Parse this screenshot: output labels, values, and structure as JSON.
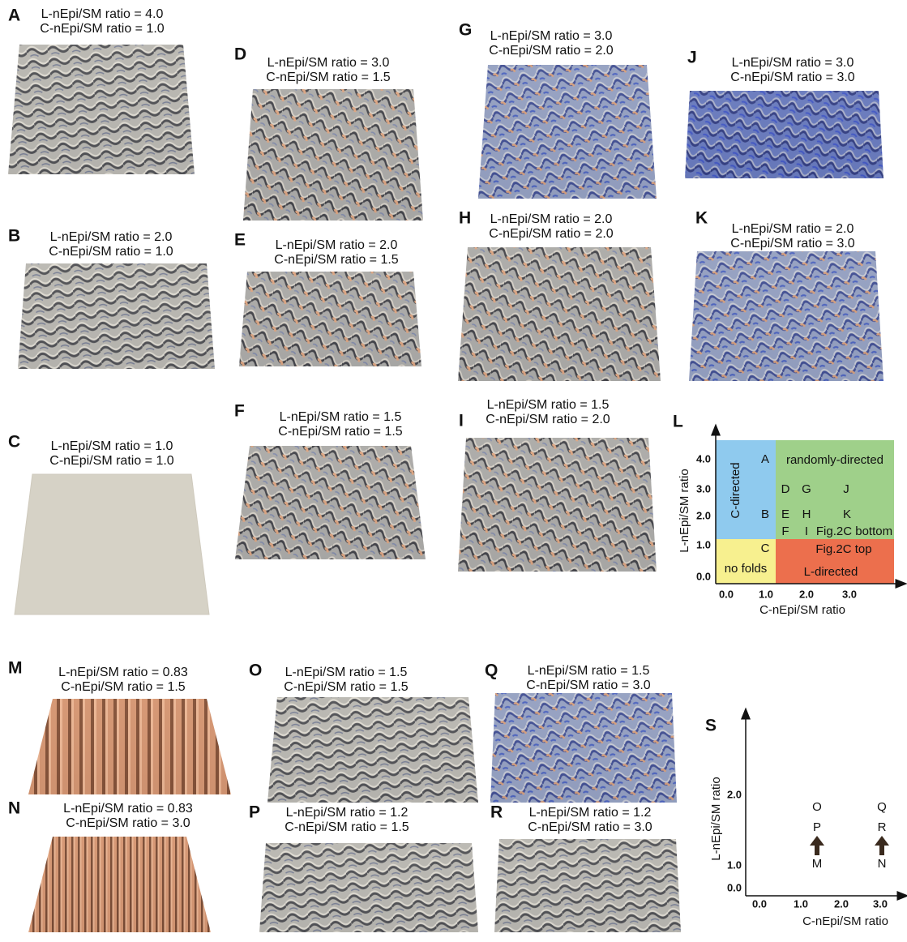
{
  "panels": [
    {
      "letter": "A",
      "line1": "L-nEpi/SM ratio = 4.0",
      "line2": "C-nEpi/SM ratio = 1.0"
    },
    {
      "letter": "B",
      "line1": "L-nEpi/SM ratio = 2.0",
      "line2": "C-nEpi/SM ratio = 1.0"
    },
    {
      "letter": "C",
      "line1": "L-nEpi/SM ratio = 1.0",
      "line2": "C-nEpi/SM ratio = 1.0"
    },
    {
      "letter": "D",
      "line1": "L-nEpi/SM ratio = 3.0",
      "line2": "C-nEpi/SM ratio = 1.5"
    },
    {
      "letter": "E",
      "line1": "L-nEpi/SM ratio = 2.0",
      "line2": "C-nEpi/SM ratio = 1.5"
    },
    {
      "letter": "F",
      "line1": "L-nEpi/SM ratio = 1.5",
      "line2": "C-nEpi/SM ratio = 1.5"
    },
    {
      "letter": "G",
      "line1": "L-nEpi/SM ratio = 3.0",
      "line2": "C-nEpi/SM ratio = 2.0"
    },
    {
      "letter": "H",
      "line1": "L-nEpi/SM ratio = 2.0",
      "line2": "C-nEpi/SM ratio = 2.0"
    },
    {
      "letter": "I",
      "line1": "L-nEpi/SM ratio = 1.5",
      "line2": "C-nEpi/SM ratio = 2.0"
    },
    {
      "letter": "J",
      "line1": "L-nEpi/SM ratio = 3.0",
      "line2": "C-nEpi/SM ratio = 3.0"
    },
    {
      "letter": "K",
      "line1": "L-nEpi/SM ratio = 2.0",
      "line2": "C-nEpi/SM ratio = 3.0"
    },
    {
      "letter": "M",
      "line1": "L-nEpi/SM ratio = 0.83",
      "line2": "C-nEpi/SM ratio = 1.5"
    },
    {
      "letter": "N",
      "line1": "L-nEpi/SM ratio = 0.83",
      "line2": "C-nEpi/SM ratio = 3.0"
    },
    {
      "letter": "O",
      "line1": "L-nEpi/SM ratio = 1.5",
      "line2": "C-nEpi/SM ratio = 1.5"
    },
    {
      "letter": "P",
      "line1": "L-nEpi/SM ratio = 1.2",
      "line2": "C-nEpi/SM ratio = 1.5"
    },
    {
      "letter": "Q",
      "line1": "L-nEpi/SM ratio = 1.5",
      "line2": "C-nEpi/SM ratio = 3.0"
    },
    {
      "letter": "R",
      "line1": "L-nEpi/SM ratio = 1.2",
      "line2": "C-nEpi/SM ratio = 3.0"
    }
  ],
  "phase_diagram_L": {
    "letter": "L",
    "x_label": "C-nEpi/SM ratio",
    "y_label": "L-nEpi/SM ratio",
    "x_ticks": [
      "0.0",
      "1.0",
      "2.0",
      "3.0"
    ],
    "y_ticks": [
      "4.0",
      "3.0",
      "2.0",
      "1.0",
      "0.0"
    ],
    "regions": [
      "C-directed",
      "randomly-directed",
      "Fig.2C bottom",
      "no folds",
      "Fig.2C top",
      "L-directed"
    ],
    "points": [
      "A",
      "B",
      "C",
      "D",
      "G",
      "J",
      "E",
      "H",
      "K",
      "F",
      "I"
    ]
  },
  "phase_diagram_S": {
    "letter": "S",
    "x_label": "C-nEpi/SM ratio",
    "y_label": "L-nEpi/SM ratio",
    "x_ticks": [
      "0.0",
      "1.0",
      "2.0",
      "3.0"
    ],
    "y_ticks": [
      "2.0",
      "1.0",
      "0.0"
    ],
    "points": [
      "O",
      "P",
      "M",
      "Q",
      "R",
      "N"
    ]
  }
}
